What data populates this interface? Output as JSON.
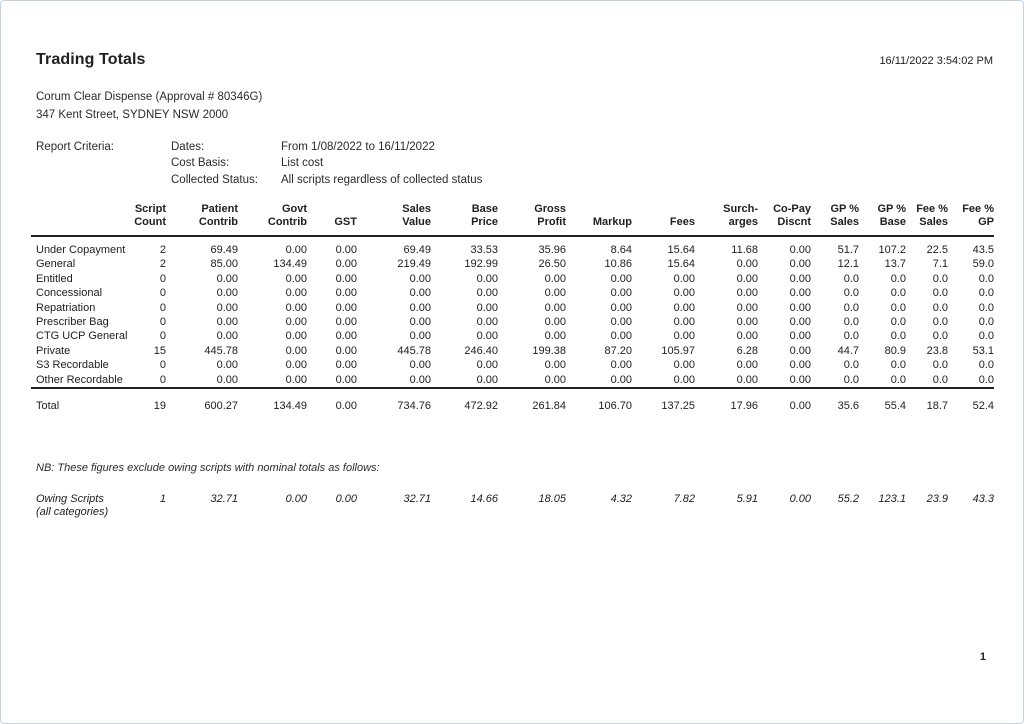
{
  "report": {
    "title": "Trading Totals",
    "timestamp": "16/11/2022 3:54:02 PM",
    "pharmacy_name": "Corum Clear Dispense  (Approval # 80346G)",
    "pharmacy_address": "347 Kent Street, SYDNEY NSW 2000",
    "criteria_label": "Report Criteria:",
    "criteria": [
      {
        "label": "Dates:",
        "value": "From 1/08/2022 to 16/11/2022"
      },
      {
        "label": "Cost Basis:",
        "value": "List cost"
      },
      {
        "label": "Collected Status:",
        "value": "All scripts regardless of collected status"
      }
    ],
    "page_number": "1"
  },
  "table": {
    "columns": [
      {
        "line1": "Script",
        "line2": "Count"
      },
      {
        "line1": "Patient",
        "line2": "Contrib"
      },
      {
        "line1": "Govt",
        "line2": "Contrib"
      },
      {
        "line1": "",
        "line2": "GST"
      },
      {
        "line1": "Sales",
        "line2": "Value"
      },
      {
        "line1": "Base",
        "line2": "Price"
      },
      {
        "line1": "Gross",
        "line2": "Profit"
      },
      {
        "line1": "",
        "line2": "Markup"
      },
      {
        "line1": "",
        "line2": "Fees"
      },
      {
        "line1": "Surch-",
        "line2": "arges"
      },
      {
        "line1": "Co-Pay",
        "line2": "Discnt"
      },
      {
        "line1": "GP %",
        "line2": "Sales"
      },
      {
        "line1": "GP %",
        "line2": "Base"
      },
      {
        "line1": "Fee %",
        "line2": "Sales"
      },
      {
        "line1": "Fee %",
        "line2": "GP"
      }
    ],
    "rows": [
      {
        "label": "Under Copayment",
        "values": [
          "2",
          "69.49",
          "0.00",
          "0.00",
          "69.49",
          "33.53",
          "35.96",
          "8.64",
          "15.64",
          "11.68",
          "0.00",
          "51.7",
          "107.2",
          "22.5",
          "43.5"
        ]
      },
      {
        "label": "General",
        "values": [
          "2",
          "85.00",
          "134.49",
          "0.00",
          "219.49",
          "192.99",
          "26.50",
          "10.86",
          "15.64",
          "0.00",
          "0.00",
          "12.1",
          "13.7",
          "7.1",
          "59.0"
        ]
      },
      {
        "label": "Entitled",
        "values": [
          "0",
          "0.00",
          "0.00",
          "0.00",
          "0.00",
          "0.00",
          "0.00",
          "0.00",
          "0.00",
          "0.00",
          "0.00",
          "0.0",
          "0.0",
          "0.0",
          "0.0"
        ]
      },
      {
        "label": "Concessional",
        "values": [
          "0",
          "0.00",
          "0.00",
          "0.00",
          "0.00",
          "0.00",
          "0.00",
          "0.00",
          "0.00",
          "0.00",
          "0.00",
          "0.0",
          "0.0",
          "0.0",
          "0.0"
        ]
      },
      {
        "label": "Repatriation",
        "values": [
          "0",
          "0.00",
          "0.00",
          "0.00",
          "0.00",
          "0.00",
          "0.00",
          "0.00",
          "0.00",
          "0.00",
          "0.00",
          "0.0",
          "0.0",
          "0.0",
          "0.0"
        ]
      },
      {
        "label": "Prescriber Bag",
        "values": [
          "0",
          "0.00",
          "0.00",
          "0.00",
          "0.00",
          "0.00",
          "0.00",
          "0.00",
          "0.00",
          "0.00",
          "0.00",
          "0.0",
          "0.0",
          "0.0",
          "0.0"
        ]
      },
      {
        "label": "CTG UCP General",
        "values": [
          "0",
          "0.00",
          "0.00",
          "0.00",
          "0.00",
          "0.00",
          "0.00",
          "0.00",
          "0.00",
          "0.00",
          "0.00",
          "0.0",
          "0.0",
          "0.0",
          "0.0"
        ]
      },
      {
        "label": "Private",
        "values": [
          "15",
          "445.78",
          "0.00",
          "0.00",
          "445.78",
          "246.40",
          "199.38",
          "87.20",
          "105.97",
          "6.28",
          "0.00",
          "44.7",
          "80.9",
          "23.8",
          "53.1"
        ]
      },
      {
        "label": "S3 Recordable",
        "values": [
          "0",
          "0.00",
          "0.00",
          "0.00",
          "0.00",
          "0.00",
          "0.00",
          "0.00",
          "0.00",
          "0.00",
          "0.00",
          "0.0",
          "0.0",
          "0.0",
          "0.0"
        ]
      },
      {
        "label": "Other Recordable",
        "values": [
          "0",
          "0.00",
          "0.00",
          "0.00",
          "0.00",
          "0.00",
          "0.00",
          "0.00",
          "0.00",
          "0.00",
          "0.00",
          "0.0",
          "0.0",
          "0.0",
          "0.0"
        ]
      }
    ],
    "total": {
      "label": "Total",
      "values": [
        "19",
        "600.27",
        "134.49",
        "0.00",
        "734.76",
        "472.92",
        "261.84",
        "106.70",
        "137.25",
        "17.96",
        "0.00",
        "35.6",
        "55.4",
        "18.7",
        "52.4"
      ]
    },
    "note": "NB: These figures exclude owing scripts with nominal totals as follows:",
    "owing": {
      "label": "Owing Scripts",
      "sublabel": "(all categories)",
      "values": [
        "1",
        "32.71",
        "0.00",
        "0.00",
        "32.71",
        "14.66",
        "18.05",
        "4.32",
        "7.82",
        "5.91",
        "0.00",
        "55.2",
        "123.1",
        "23.9",
        "43.3"
      ]
    }
  }
}
